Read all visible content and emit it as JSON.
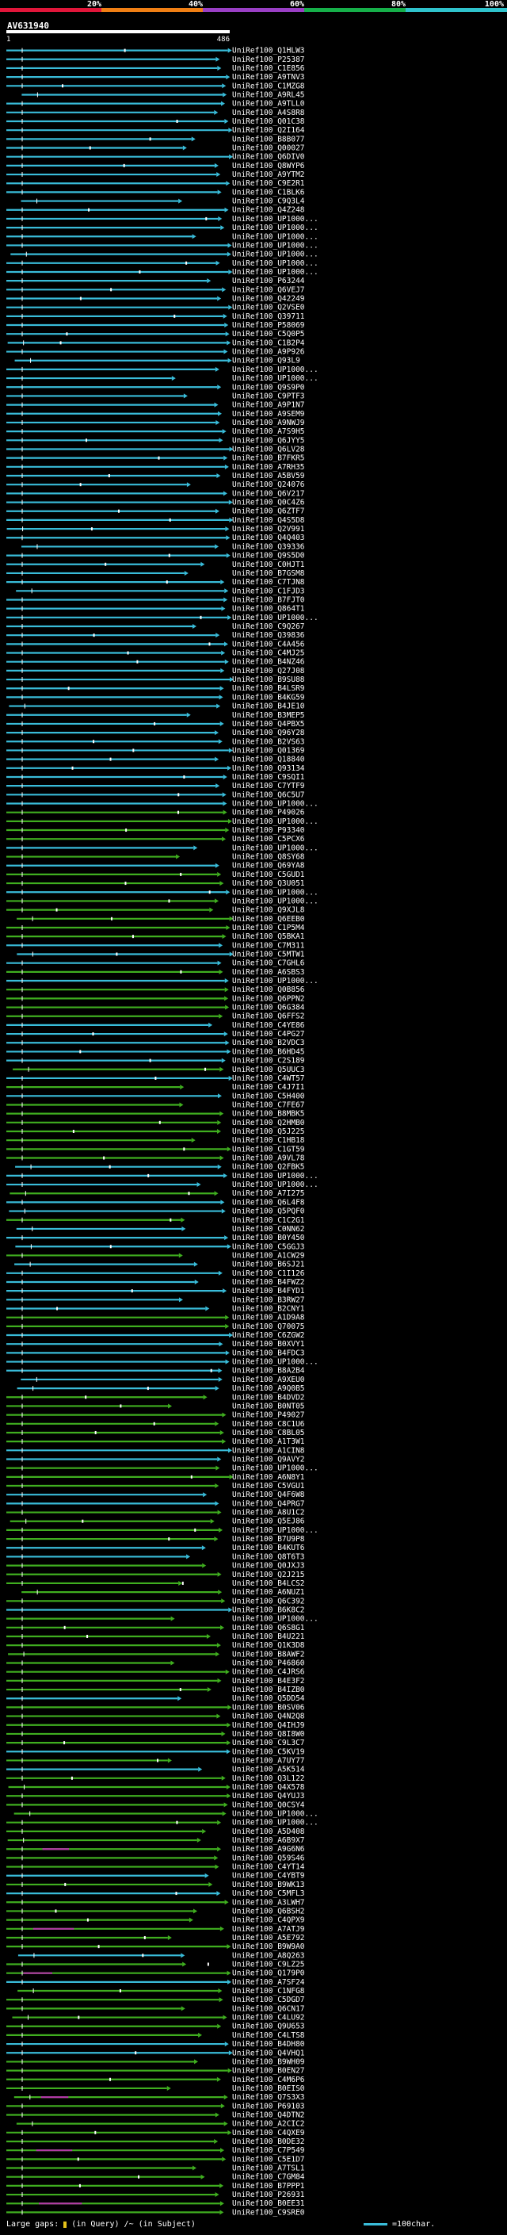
{
  "legend": {
    "percent_marks": [
      "20%",
      "40%",
      "60%",
      "80%",
      "100%"
    ],
    "colors": [
      "#e1163a",
      "#f07f14",
      "#9a3fc5",
      "#16b04a",
      "#2fc3cc"
    ]
  },
  "query": {
    "name": "AV631940",
    "start_tick": "1",
    "end_tick": "486"
  },
  "hit_colors": {
    "cyan": "#39bcd9",
    "green": "#3fae1f",
    "magenta": "#b23aa6",
    "grid": "#111"
  },
  "hits": [
    "UniRef100_Q1HLW3",
    "UniRef100_P25387",
    "UniRef100_C1E856",
    "UniRef100_A9TNV3",
    "UniRef100_C1MZG8",
    "UniRef100_A9RL45",
    "UniRef100_A9TLL0",
    "UniRef100_A4S8R8",
    "UniRef100_Q01C38",
    "UniRef100_Q2I164",
    "UniRef100_B8B077",
    "UniRef100_Q00027",
    "UniRef100_Q6DIV0",
    "UniRef100_Q8WYP6",
    "UniRef100_A9YTM2",
    "UniRef100_C9E2R1",
    "UniRef100_C1BLK6",
    "UniRef100_C9Q3L4",
    "UniRef100_Q4Z248",
    "UniRef100_UP1000...",
    "UniRef100_UP1000...",
    "UniRef100_UP1000...",
    "UniRef100_UP1000...",
    "UniRef100_UP1000...",
    "UniRef100_UP1000...",
    "UniRef100_UP1000...",
    "UniRef100_P63244",
    "UniRef100_Q6VEJ7",
    "UniRef100_Q42249",
    "UniRef100_Q2VSE0",
    "UniRef100_Q39711",
    "UniRef100_P58069",
    "UniRef100_C5Q0P5",
    "UniRef100_C1B2P4",
    "UniRef100_A9P926",
    "UniRef100_Q93L9",
    "UniRef100_UP1000...",
    "UniRef100_UP1000...",
    "UniRef100_Q9S9P0",
    "UniRef100_C9PTF3",
    "UniRef100_A9P1N7",
    "UniRef100_A9SEM9",
    "UniRef100_A9NWJ9",
    "UniRef100_A7S9H5",
    "UniRef100_Q6JYY5",
    "UniRef100_Q6LV28",
    "UniRef100_B7FKR5",
    "UniRef100_A7RH35",
    "UniRef100_A5BV59",
    "UniRef100_Q24076",
    "UniRef100_Q6V217",
    "UniRef100_Q0C4Z6",
    "UniRef100_Q6ZTF7",
    "UniRef100_Q4S5D8",
    "UniRef100_Q2V991",
    "UniRef100_Q4Q403",
    "UniRef100_Q39336",
    "UniRef100_Q9S5D0",
    "UniRef100_C0HJT1",
    "UniRef100_B7GSM8",
    "UniRef100_C7TJN8",
    "UniRef100_C1FJD3",
    "UniRef100_B7FJT0",
    "UniRef100_Q864T1",
    "UniRef100_UP1000...",
    "UniRef100_C9Q267",
    "UniRef100_Q39836",
    "UniRef100_C4A456",
    "UniRef100_C4MJ25",
    "UniRef100_B4NZ46",
    "UniRef100_Q27J08",
    "UniRef100_B9SU88",
    "UniRef100_B4LSR9",
    "UniRef100_B4KG59",
    "UniRef100_B4JE10",
    "UniRef100_B3MEP5",
    "UniRef100_Q4PBX5",
    "UniRef100_Q96Y28",
    "UniRef100_B2VS63",
    "UniRef100_Q01369",
    "UniRef100_Q18840",
    "UniRef100_Q93134",
    "UniRef100_C9SQI1",
    "UniRef100_C7YTF9",
    "UniRef100_Q6C5U7",
    "UniRef100_UP1000...",
    "UniRef100_P49026",
    "UniRef100_UP1000...",
    "UniRef100_P93340",
    "UniRef100_C5PCX6",
    "UniRef100_UP1000...",
    "UniRef100_Q8SY68",
    "UniRef100_Q69YA8",
    "UniRef100_C5GUD1",
    "UniRef100_Q3U051",
    "UniRef100_UP1000...",
    "UniRef100_UP1000...",
    "UniRef100_Q9XJL8",
    "UniRef100_Q6EEB0",
    "UniRef100_C1P5M4",
    "UniRef100_Q5BKA1",
    "UniRef100_C7M311",
    "UniRef100_C5MTW1",
    "UniRef100_C7GHL6",
    "UniRef100_A6SBS3",
    "UniRef100_UP1000...",
    "UniRef100_Q0B856",
    "UniRef100_Q6PPN2",
    "UniRef100_Q6G384",
    "UniRef100_Q6FFS2",
    "UniRef100_C4YE86",
    "UniRef100_C4PG27",
    "UniRef100_B2VDC3",
    "UniRef100_B6HD45",
    "UniRef100_C2S189",
    "UniRef100_Q5UUC3",
    "UniRef100_C4WT57",
    "UniRef100_C4J7I1",
    "UniRef100_C5H400",
    "UniRef100_C7FE67",
    "UniRef100_B8MBK5",
    "UniRef100_Q2HMB0",
    "UniRef100_Q5J225",
    "UniRef100_C1HB18",
    "UniRef100_C1GT59",
    "UniRef100_A9VL78",
    "UniRef100_Q2FBK5",
    "UniRef100_UP1000...",
    "UniRef100_UP1000...",
    "UniRef100_A7I275",
    "UniRef100_Q6L4F8",
    "UniRef100_Q5PQF0",
    "UniRef100_C1C2G1",
    "UniRef100_C0NN62",
    "UniRef100_B0Y450",
    "UniRef100_C5GGJ3",
    "UniRef100_A1CW29",
    "UniRef100_B6SJ21",
    "UniRef100_C1I126",
    "UniRef100_B4FWZ2",
    "UniRef100_B4FYD1",
    "UniRef100_B3RW27",
    "UniRef100_B2CNY1",
    "UniRef100_A1D9A8",
    "UniRef100_Q70075",
    "UniRef100_C6ZGW2",
    "UniRef100_B0XVY1",
    "UniRef100_B4FDC3",
    "UniRef100_UP1000...",
    "UniRef100_B8A2B4",
    "UniRef100_A9XEU0",
    "UniRef100_A9Q0B5",
    "UniRef100_B4DVD2",
    "UniRef100_B0NT05",
    "UniRef100_P49027",
    "UniRef100_C8C1U6",
    "UniRef100_C8BL05",
    "UniRef100_A1T3W1",
    "UniRef100_A1CIN8",
    "UniRef100_Q9AVY2",
    "UniRef100_UP1000...",
    "UniRef100_A6N8Y1",
    "UniRef100_C5VGU1",
    "UniRef100_Q4F6W8",
    "UniRef100_Q4PRG7",
    "UniRef100_A8U1C2",
    "UniRef100_Q5EJ86",
    "UniRef100_UP1000...",
    "UniRef100_B7U9P8",
    "UniRef100_B4KUT6",
    "UniRef100_Q8T6T3",
    "UniRef100_Q0JXJ3",
    "UniRef100_Q2J215",
    "UniRef100_B4LCS2",
    "UniRef100_A6NUZ1",
    "UniRef100_Q6C392",
    "UniRef100_B6K8C2",
    "UniRef100_UP1000...",
    "UniRef100_Q6S8G1",
    "UniRef100_B4U221",
    "UniRef100_Q1K3D8",
    "UniRef100_B8AWF2",
    "UniRef100_P46860",
    "UniRef100_C4JRS6",
    "UniRef100_B4E3F2",
    "UniRef100_B4IZB0",
    "UniRef100_Q5DD54",
    "UniRef100_B0SV06",
    "UniRef100_Q4N2Q8",
    "UniRef100_Q4IHJ9",
    "UniRef100_Q8I8W0",
    "UniRef100_C9L3C7",
    "UniRef100_C5KV19",
    "UniRef100_A7UY77",
    "UniRef100_A5K514",
    "UniRef100_Q3L122",
    "UniRef100_Q4X578",
    "UniRef100_Q4YUJ3",
    "UniRef100_Q0CSY4",
    "UniRef100_UP1000...",
    "UniRef100_UP1000...",
    "UniRef100_A5D408",
    "UniRef100_A6B9X7",
    "UniRef100_A9G6N6",
    "UniRef100_Q59S46",
    "UniRef100_C4YT14",
    "UniRef100_C4YBT9",
    "UniRef100_B9WK13",
    "UniRef100_C5MFL3",
    "UniRef100_A3LWH7",
    "UniRef100_Q6BSH2",
    "UniRef100_C4QPX9",
    "UniRef100_A7ATJ9",
    "UniRef100_A5E792",
    "UniRef100_B9W9A0",
    "UniRef100_A8Q263",
    "UniRef100_C9LZ25",
    "UniRef100_Q179P0",
    "UniRef100_A7SF24",
    "UniRef100_C1NFG8",
    "UniRef100_C5DGD7",
    "UniRef100_Q6CN17",
    "UniRef100_C4LU92",
    "UniRef100_Q9U653",
    "UniRef100_C4LTS8",
    "UniRef100_B4DH80",
    "UniRef100_Q4VHQ1",
    "UniRef100_B9WH09",
    "UniRef100_B0EN27",
    "UniRef100_C4M6P6",
    "UniRef100_B0EIS0",
    "UniRef100_Q7S3X3",
    "UniRef100_P69103",
    "UniRef100_Q4DTN2",
    "UniRef100_A2CIC2",
    "UniRef100_C4QXE9",
    "UniRef100_B0DE32",
    "UniRef100_C7P549",
    "UniRef100_C5E1D7",
    "UniRef100_A7TSL1",
    "UniRef100_C7GM84",
    "UniRef100_B7PPP1",
    "UniRef100_P26931",
    "UniRef100_B0EE31",
    "UniRef100_C9SRE0"
  ],
  "footer": {
    "large_gaps_label": "Large gaps:",
    "in_query_label": "(in Query)",
    "in_subject_label": "/~ (in Subject)",
    "scale_label": "=100char."
  }
}
